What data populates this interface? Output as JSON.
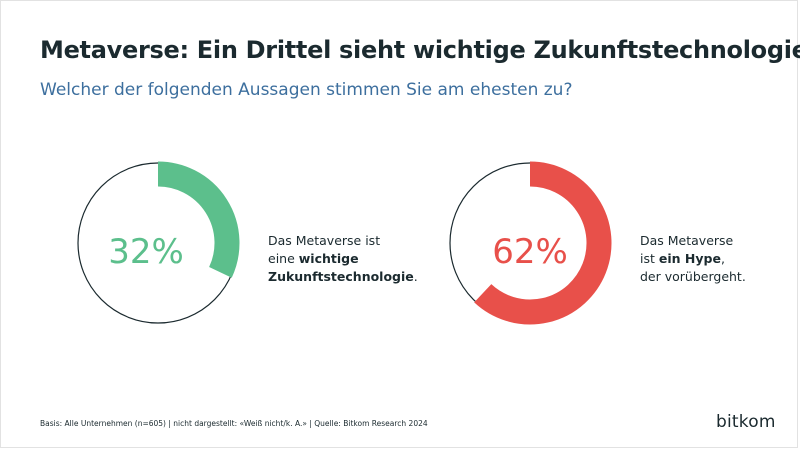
{
  "title": "Metaverse: Ein Drittel sieht wichtige Zukunftstechnologie",
  "subtitle": "Welcher der folgenden Aussagen stimmen Sie am ehesten zu?",
  "footnote": "Basis: Alle Unternehmen (n=605) | nicht dargestellt: «Weiß nicht/k. A.» | Quelle: Bitkom Research 2024",
  "logo": "bitkom",
  "colors": {
    "green": "#5cbf8c",
    "red": "#e8504a",
    "ring": "#1b2a2f"
  },
  "chart_data": [
    {
      "type": "pie",
      "value": 32,
      "value_label": "32%",
      "label_lines": [
        [
          {
            "text": "Das Metaverse ist",
            "bold": false
          }
        ],
        [
          {
            "text": "eine ",
            "bold": false
          },
          {
            "text": "wichtige",
            "bold": true
          }
        ],
        [
          {
            "text": "Zukunftstechnologie",
            "bold": true
          },
          {
            "text": ".",
            "bold": false
          }
        ]
      ],
      "color": "#5cbf8c"
    },
    {
      "type": "pie",
      "value": 62,
      "value_label": "62%",
      "label_lines": [
        [
          {
            "text": "Das Metaverse",
            "bold": false
          }
        ],
        [
          {
            "text": "ist ",
            "bold": false
          },
          {
            "text": "ein Hype",
            "bold": true
          },
          {
            "text": ",",
            "bold": false
          }
        ],
        [
          {
            "text": "der vorübergeht.",
            "bold": false
          }
        ]
      ],
      "color": "#e8504a"
    }
  ]
}
